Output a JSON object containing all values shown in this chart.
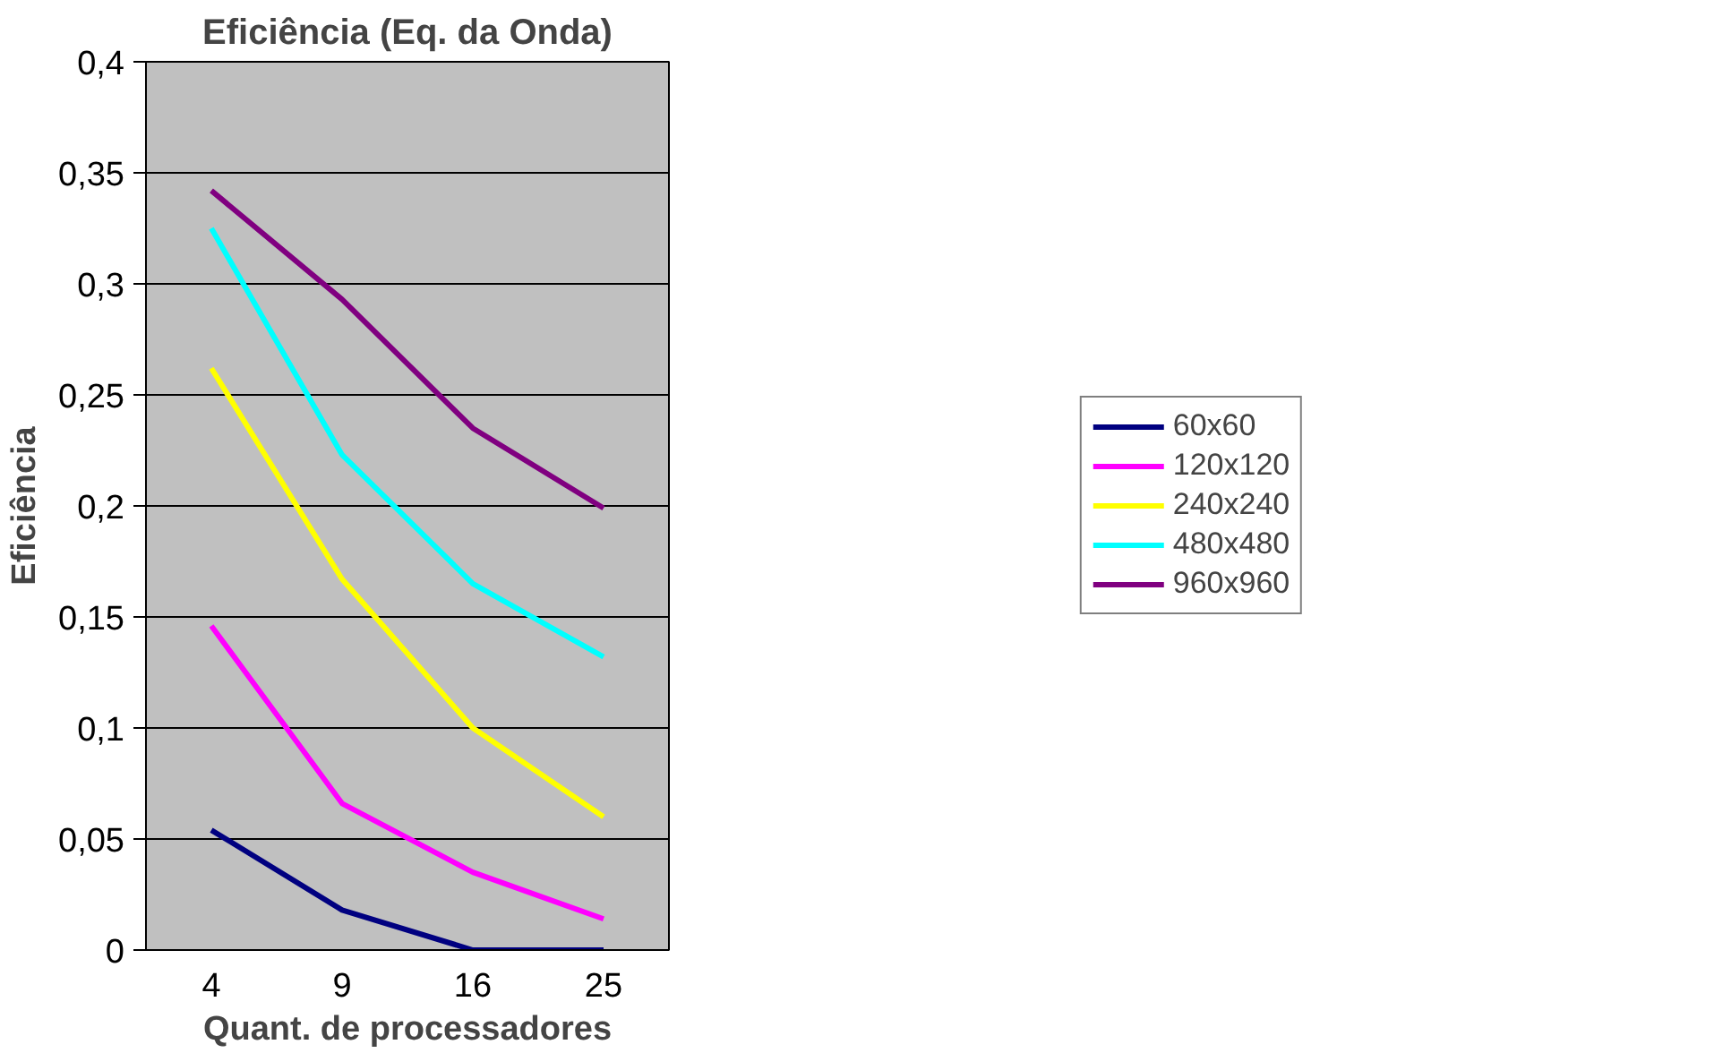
{
  "chart_data": {
    "type": "line",
    "title": "Eficiência (Eq. da Onda)",
    "xlabel": "Quant. de processadores",
    "ylabel": "Eficiência",
    "categories": [
      "4",
      "9",
      "16",
      "25"
    ],
    "series": [
      {
        "name": "60x60",
        "color": "#000080",
        "values": [
          0.054,
          0.018,
          0,
          0
        ]
      },
      {
        "name": "120x120",
        "color": "#ff00ff",
        "values": [
          0.146,
          0.066,
          0.035,
          0.014
        ]
      },
      {
        "name": "240x240",
        "color": "#ffff00",
        "values": [
          0.262,
          0.167,
          0.1,
          0.06
        ]
      },
      {
        "name": "480x480",
        "color": "#00ffff",
        "values": [
          0.325,
          0.223,
          0.165,
          0.132
        ]
      },
      {
        "name": "960x960",
        "color": "#800080",
        "values": [
          0.342,
          0.293,
          0.235,
          0.199
        ]
      }
    ],
    "ylim": [
      0,
      0.4
    ],
    "yticks": [
      0,
      {
        "value": 0.05,
        "label": "0,05"
      },
      {
        "value": 0.1,
        "label": "0,1"
      },
      {
        "value": 0.15,
        "label": "0,15"
      },
      {
        "value": 0.2,
        "label": "0,2"
      },
      {
        "value": 0.25,
        "label": "0,25"
      },
      {
        "value": 0.3,
        "label": "0,3"
      },
      {
        "value": 0.35,
        "label": "0,35"
      },
      {
        "value": 0.4,
        "label": "0,4"
      }
    ],
    "grid": "y",
    "legend": "right",
    "marker": "none",
    "line_style": "solid"
  }
}
